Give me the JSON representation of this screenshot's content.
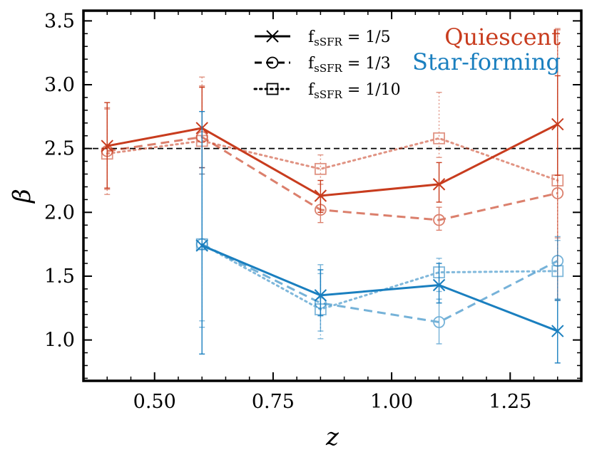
{
  "chart_data": {
    "type": "line",
    "title": "",
    "xlabel": "z",
    "ylabel": "β",
    "xlim": [
      0.35,
      1.4
    ],
    "ylim": [
      0.68,
      3.58
    ],
    "xticks": [
      0.5,
      0.75,
      1.0,
      1.25
    ],
    "xtick_labels": [
      "0.50",
      "0.75",
      "1.00",
      "1.25"
    ],
    "yticks": [
      1.0,
      1.5,
      2.0,
      2.5,
      3.0,
      3.5
    ],
    "ytick_labels": [
      "1.0",
      "1.5",
      "2.0",
      "2.5",
      "3.0",
      "3.5"
    ],
    "reference_line": {
      "y": 2.5,
      "style": "dashed",
      "color": "#000000"
    },
    "legend": {
      "position": "top-center",
      "entries": [
        {
          "prefix": "f",
          "subscript": "sSFR",
          "suffix": " = 1/5",
          "marker": "x",
          "linestyle": "solid"
        },
        {
          "prefix": "f",
          "subscript": "sSFR",
          "suffix": " = 1/3",
          "marker": "o",
          "linestyle": "dashed"
        },
        {
          "prefix": "f",
          "subscript": "sSFR",
          "suffix": " = 1/10",
          "marker": "s",
          "linestyle": "dotted"
        }
      ]
    },
    "group_labels": [
      {
        "text": "Quiescent",
        "color": "#c83c1e"
      },
      {
        "text": "Star-forming",
        "color": "#1a7fbf"
      }
    ],
    "series": [
      {
        "name": "Quiescent fsSFR = 1/5",
        "group": "Quiescent",
        "color": "#c83c1e",
        "alpha": 1.0,
        "marker": "x",
        "linestyle": "solid",
        "x": [
          0.4,
          0.6,
          0.85,
          1.1,
          1.35
        ],
        "y": [
          2.52,
          2.66,
          2.13,
          2.22,
          2.69
        ],
        "err_low": [
          0.33,
          0.31,
          0.13,
          0.14,
          0.4
        ],
        "err_high": [
          0.34,
          0.32,
          0.12,
          0.17,
          0.38
        ]
      },
      {
        "name": "Quiescent fsSFR = 1/3",
        "group": "Quiescent",
        "color": "#c83c1e",
        "alpha": 0.65,
        "marker": "o",
        "linestyle": "dashed",
        "x": [
          0.4,
          0.6,
          0.85,
          1.1,
          1.35
        ],
        "y": [
          2.48,
          2.59,
          2.02,
          1.94,
          2.15
        ],
        "err_low": [
          0.3,
          0.24,
          0.1,
          0.08,
          0.84
        ],
        "err_high": [
          0.33,
          0.4,
          0.1,
          0.1,
          1.28
        ]
      },
      {
        "name": "Quiescent fsSFR = 1/10",
        "group": "Quiescent",
        "color": "#c83c1e",
        "alpha": 0.55,
        "marker": "s",
        "linestyle": "dotted",
        "x": [
          0.4,
          0.6,
          0.85,
          1.1,
          1.35
        ],
        "y": [
          2.46,
          2.56,
          2.34,
          2.58,
          2.25
        ],
        "err_low": [
          0.32,
          0.26,
          0.12,
          0.15,
          0.45
        ],
        "err_high": [
          0.36,
          0.5,
          0.11,
          0.36,
          1.19
        ]
      },
      {
        "name": "Star-forming fsSFR = 1/5",
        "group": "Star-forming",
        "color": "#1a7fbf",
        "alpha": 1.0,
        "marker": "x",
        "linestyle": "solid",
        "x": [
          0.6,
          0.85,
          1.1,
          1.35
        ],
        "y": [
          1.74,
          1.35,
          1.43,
          1.07
        ],
        "err_low": [
          0.85,
          0.16,
          0.14,
          0.25
        ],
        "err_high": [
          1.05,
          0.2,
          0.17,
          0.24
        ]
      },
      {
        "name": "Star-forming fsSFR = 1/3",
        "group": "Star-forming",
        "color": "#1a7fbf",
        "alpha": 0.6,
        "marker": "o",
        "linestyle": "dashed",
        "x": [
          0.6,
          0.85,
          1.1,
          1.35
        ],
        "y": [
          1.75,
          1.29,
          1.14,
          1.62
        ],
        "err_low": [
          0.65,
          0.22,
          0.17,
          0.3
        ],
        "err_high": [
          0.6,
          0.3,
          0.18,
          0.19
        ]
      },
      {
        "name": "Star-forming fsSFR = 1/10",
        "group": "Star-forming",
        "color": "#1a7fbf",
        "alpha": 0.55,
        "marker": "s",
        "linestyle": "dotted",
        "x": [
          0.6,
          0.85,
          1.1,
          1.35
        ],
        "y": [
          1.75,
          1.24,
          1.53,
          1.54
        ],
        "err_low": [
          0.6,
          0.23,
          0.15,
          0.22
        ],
        "err_high": [
          0.55,
          0.28,
          0.11,
          0.24
        ]
      }
    ]
  }
}
